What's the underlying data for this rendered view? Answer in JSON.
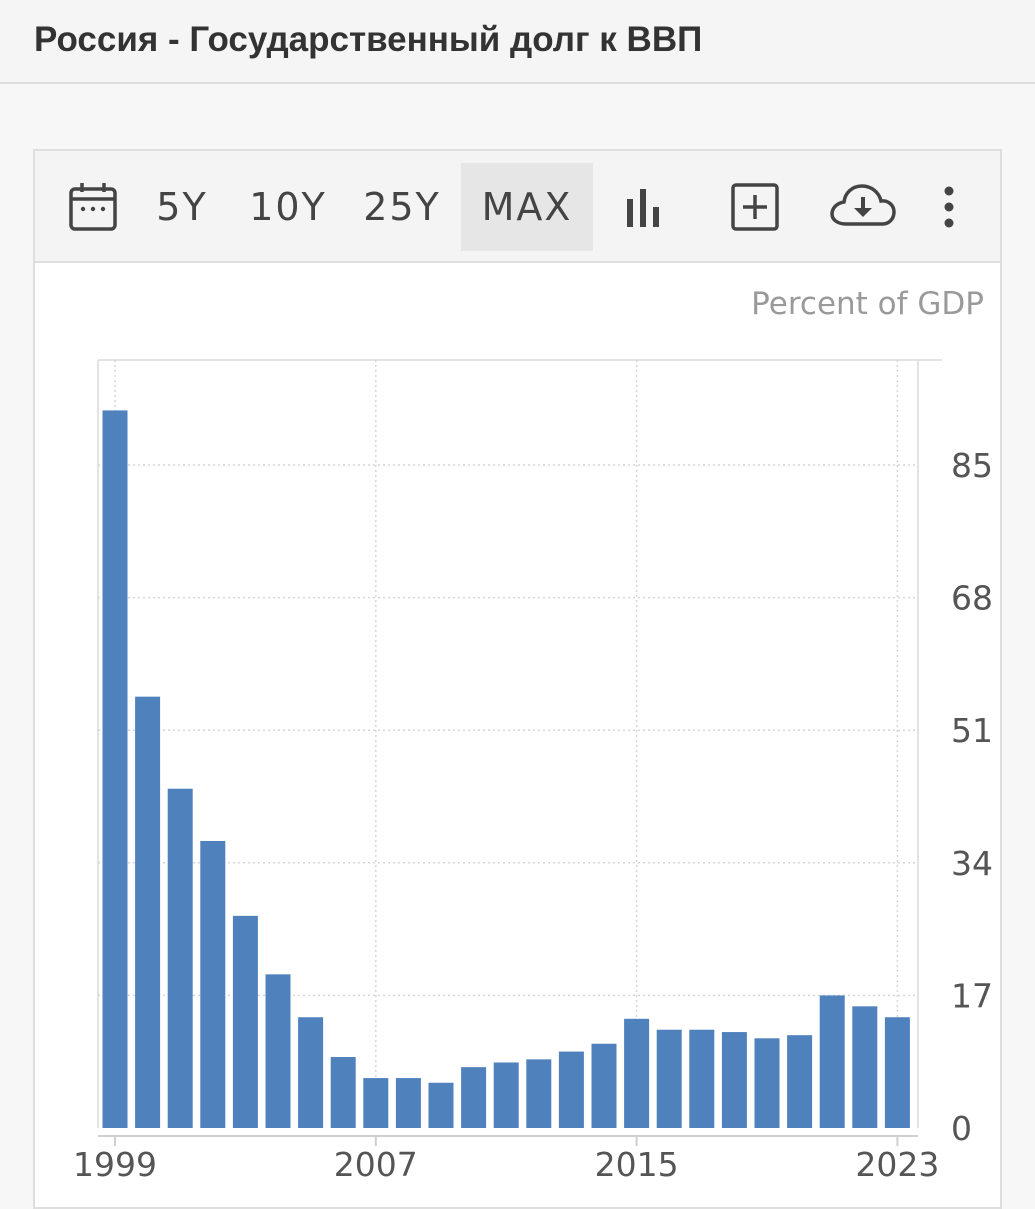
{
  "header": {
    "title": "Россия - Государственный долг к ВВП"
  },
  "toolbar": {
    "calendar_icon": "calendar-icon",
    "ranges": [
      "5Y",
      "10Y",
      "25Y",
      "MAX"
    ],
    "active_range": "MAX",
    "bar_chart_icon": "bar-chart-icon",
    "add_icon": "plus-square-icon",
    "download_icon": "cloud-download-icon",
    "more_icon": "more-vertical-icon"
  },
  "chart_data": {
    "type": "bar",
    "title": "",
    "unit_label": "Percent of GDP",
    "categories": [
      "1999",
      "2000",
      "2001",
      "2002",
      "2003",
      "2004",
      "2005",
      "2006",
      "2007",
      "2008",
      "2009",
      "2010",
      "2011",
      "2012",
      "2013",
      "2014",
      "2015",
      "2016",
      "2017",
      "2018",
      "2019",
      "2020",
      "2021",
      "2022",
      "2023"
    ],
    "values": [
      92,
      55.3,
      43.5,
      36.8,
      27.2,
      19.7,
      14.2,
      9.1,
      6.4,
      6.4,
      5.8,
      7.8,
      8.4,
      8.8,
      9.8,
      10.8,
      14.0,
      12.6,
      12.6,
      12.3,
      11.5,
      11.9,
      17.0,
      15.6,
      14.2
    ],
    "bar_color": "#4f81bd",
    "x_tick_labels": [
      "1999",
      "2007",
      "2015",
      "2023"
    ],
    "y_ticks": [
      0,
      17,
      34,
      51,
      68,
      85
    ],
    "ylim": [
      0,
      100
    ],
    "grid": true,
    "y_axis_side": "right"
  }
}
